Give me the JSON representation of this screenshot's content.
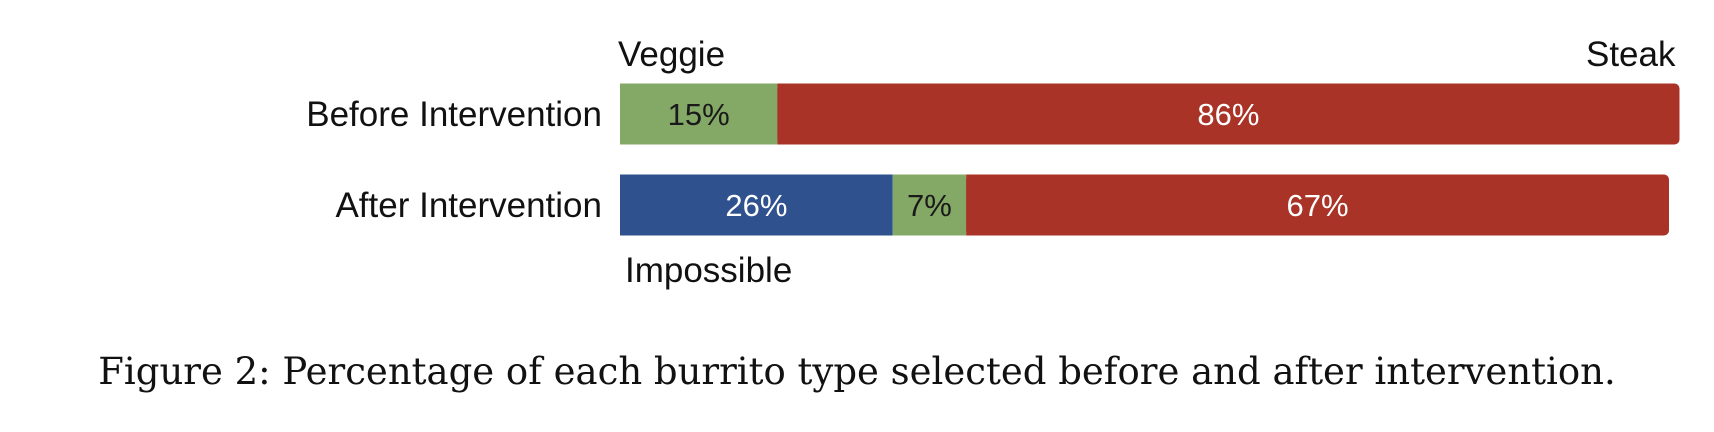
{
  "chart_data": {
    "type": "bar",
    "orientation": "horizontal",
    "stacked": true,
    "categories": [
      "Before Intervention",
      "After Intervention"
    ],
    "series": [
      {
        "name": "Impossible",
        "values": [
          0,
          26
        ],
        "labels": [
          "",
          "26%"
        ],
        "color": "#2f528f"
      },
      {
        "name": "Veggie",
        "values": [
          15,
          7
        ],
        "labels": [
          "15%",
          "7%"
        ],
        "color": "#84a866"
      },
      {
        "name": "Steak",
        "values": [
          86,
          67
        ],
        "labels": [
          "86%",
          "67%"
        ],
        "color": "#a93326"
      }
    ],
    "grid": false,
    "legend": "inline labels"
  },
  "caption": "Figure 2: Percentage of each burrito type selected before and after intervention."
}
